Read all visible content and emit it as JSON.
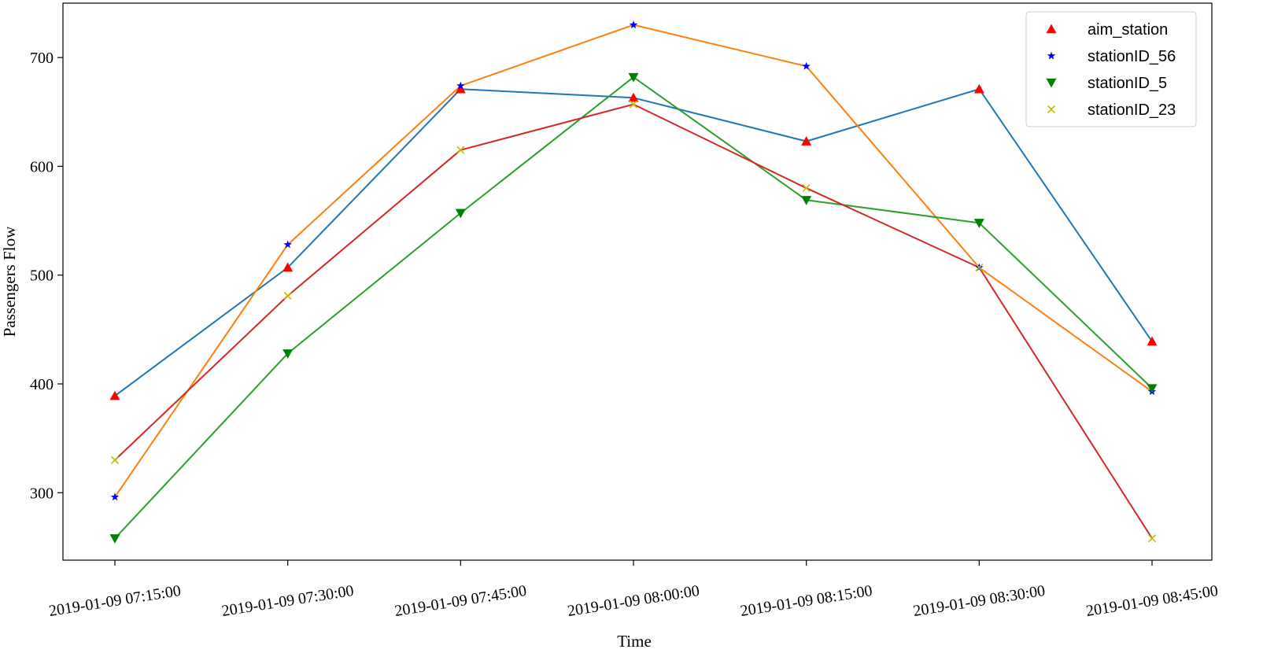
{
  "chart_data": {
    "type": "line",
    "x": [
      "2019-01-09 07:15:00",
      "2019-01-09 07:30:00",
      "2019-01-09 07:45:00",
      "2019-01-09 08:00:00",
      "2019-01-09 08:15:00",
      "2019-01-09 08:30:00",
      "2019-01-09 08:45:00"
    ],
    "xlabel": "Time",
    "ylabel": "Passengers Flow",
    "yticks": [
      300,
      400,
      500,
      600,
      700
    ],
    "ylim": [
      238,
      750
    ],
    "grid": false,
    "legend_position": "top-right",
    "marker_series": [
      {
        "name": "aim_station",
        "marker": "triangle-up",
        "color": "#ff0000",
        "values": [
          389,
          507,
          671,
          663,
          623,
          671,
          439
        ]
      },
      {
        "name": "stationID_56",
        "marker": "star",
        "color": "#0000ff",
        "values": [
          296,
          528,
          674,
          730,
          692,
          507,
          393
        ]
      },
      {
        "name": "stationID_5",
        "marker": "triangle-down",
        "color": "#008000",
        "values": [
          258,
          428,
          557,
          682,
          569,
          548,
          396
        ]
      },
      {
        "name": "stationID_23",
        "marker": "x",
        "color": "#bfbf00",
        "values": [
          330,
          481,
          615,
          657,
          580,
          507,
          258
        ]
      }
    ],
    "line_series": [
      {
        "color": "#1f77b4",
        "values": [
          389,
          507,
          671,
          663,
          623,
          671,
          439
        ]
      },
      {
        "color": "#ff7f0e",
        "values": [
          296,
          528,
          674,
          730,
          692,
          507,
          393
        ]
      },
      {
        "color": "#2ca02c",
        "values": [
          258,
          428,
          557,
          682,
          569,
          548,
          396
        ]
      },
      {
        "color": "#d62728",
        "values": [
          330,
          481,
          615,
          657,
          580,
          507,
          258
        ]
      }
    ]
  }
}
